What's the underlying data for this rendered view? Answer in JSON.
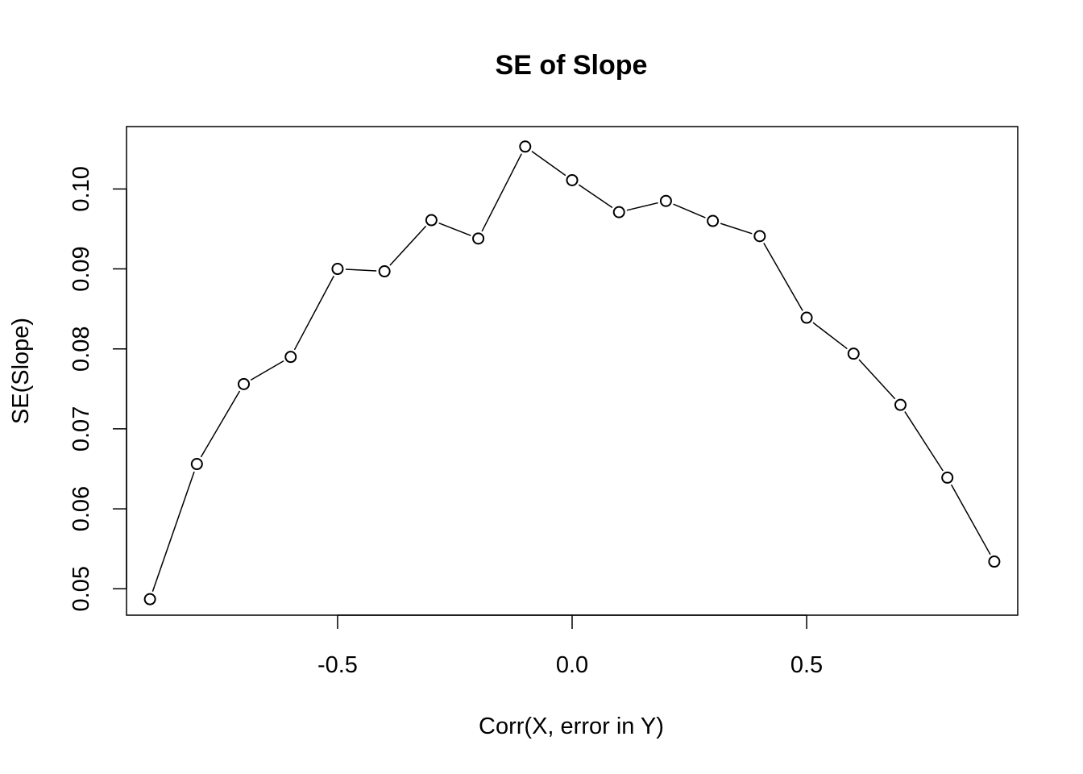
{
  "chart_data": {
    "type": "line",
    "title": "SE of Slope",
    "xlabel": "Corr(X, error in Y)",
    "ylabel": "SE(Slope)",
    "xlim": [
      -0.95,
      0.95
    ],
    "ylim": [
      0.0467,
      0.1078
    ],
    "xticks": [
      -0.5,
      0.0,
      0.5
    ],
    "xtick_labels": [
      "-0.5",
      "0.0",
      "0.5"
    ],
    "yticks": [
      0.05,
      0.06,
      0.07,
      0.08,
      0.09,
      0.1
    ],
    "ytick_labels": [
      "0.05",
      "0.06",
      "0.07",
      "0.08",
      "0.09",
      "0.10"
    ],
    "grid": false,
    "legend": "none",
    "marker": "open-circle",
    "line_color": "#000000",
    "series": [
      {
        "x": [
          -0.9,
          -0.8,
          -0.7,
          -0.6,
          -0.5,
          -0.4,
          -0.3,
          -0.2,
          -0.1,
          0.0,
          0.1,
          0.2,
          0.3,
          0.4,
          0.5,
          0.6,
          0.7,
          0.8,
          0.9
        ],
        "y": [
          0.0487,
          0.0656,
          0.0756,
          0.079,
          0.09,
          0.0897,
          0.0961,
          0.0938,
          0.1053,
          0.1011,
          0.0971,
          0.0985,
          0.096,
          0.0941,
          0.0839,
          0.0794,
          0.073,
          0.0639,
          0.0534
        ]
      }
    ]
  }
}
